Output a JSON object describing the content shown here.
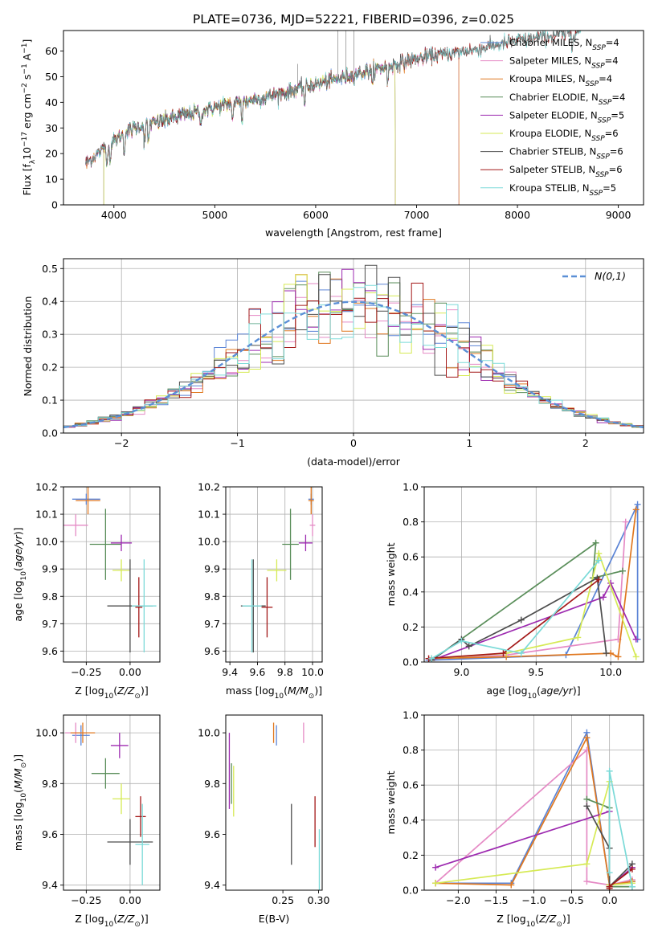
{
  "figure": {
    "title": "PLATE=0736, MJD=52221, FIBERID=0396, z=0.025"
  },
  "palette": {
    "Chabrier MILES": "#5b84d6",
    "Salpeter MILES": "#e58ac5",
    "Kroupa MILES": "#e07820",
    "Chabrier ELODIE": "#5a8e5a",
    "Salpeter ELODIE": "#9d2ab0",
    "Kroupa ELODIE": "#d6ea55",
    "Chabrier STELIB": "#4d4d4d",
    "Salpeter STELIB": "#a31818",
    "Kroupa STELIB": "#7bdad8",
    "grid": "#b0b0b0",
    "gaussian": "#5b8fd6"
  },
  "chart_data": [
    {
      "id": "spectrum",
      "type": "line",
      "xlabel": "wavelength [Angstrom, rest frame]",
      "ylabel": "Flux [f_λ10^-17 erg cm^-2 s^-1 A^-1]",
      "xlim": [
        3500,
        9250
      ],
      "ylim": [
        0,
        68
      ],
      "xticks": [
        4000,
        5000,
        6000,
        7000,
        8000,
        9000
      ],
      "yticks": [
        0,
        10,
        20,
        30,
        40,
        50,
        60
      ],
      "grid": false,
      "legend_position": "upper-right",
      "legend": [
        {
          "name": "Chabrier MILES",
          "nssp": "4"
        },
        {
          "name": "Salpeter MILES",
          "nssp": "4"
        },
        {
          "name": "Kroupa MILES",
          "nssp": "4"
        },
        {
          "name": "Chabrier ELODIE",
          "nssp": "4"
        },
        {
          "name": "Salpeter ELODIE",
          "nssp": "5"
        },
        {
          "name": "Kroupa ELODIE",
          "nssp": "6"
        },
        {
          "name": "Chabrier STELIB",
          "nssp": "6"
        },
        {
          "name": "Salpeter STELIB",
          "nssp": "6"
        },
        {
          "name": "Kroupa STELIB",
          "nssp": "5"
        }
      ],
      "continuum": [
        [
          3720,
          16
        ],
        [
          3900,
          22
        ],
        [
          4000,
          25
        ],
        [
          4200,
          30
        ],
        [
          4500,
          33
        ],
        [
          5000,
          38
        ],
        [
          5500,
          42
        ],
        [
          6000,
          47
        ],
        [
          6500,
          52
        ],
        [
          7000,
          57
        ],
        [
          7500,
          60
        ],
        [
          8000,
          64
        ],
        [
          8500,
          67
        ],
        [
          8630,
          68
        ]
      ],
      "data_range": [
        3720,
        8630
      ],
      "model_ranges": [
        {
          "name": "Chabrier MILES",
          "range": [
            3720,
            7420
          ]
        },
        {
          "name": "Salpeter MILES",
          "range": [
            3720,
            7420
          ]
        },
        {
          "name": "Kroupa MILES",
          "range": [
            3720,
            7420
          ]
        },
        {
          "name": "Chabrier ELODIE",
          "range": [
            3900,
            6790
          ]
        },
        {
          "name": "Salpeter ELODIE",
          "range": [
            3900,
            6790
          ]
        },
        {
          "name": "Kroupa ELODIE",
          "range": [
            3900,
            6790
          ]
        },
        {
          "name": "Chabrier STELIB",
          "range": [
            3720,
            8630
          ]
        },
        {
          "name": "Salpeter STELIB",
          "range": [
            3720,
            8630
          ]
        },
        {
          "name": "Kroupa STELIB",
          "range": [
            3720,
            8630
          ]
        }
      ]
    },
    {
      "id": "residuals",
      "type": "histogram",
      "xlabel": "(data-model)/error",
      "ylabel": "Normed distribution",
      "xlim": [
        -2.5,
        2.5
      ],
      "ylim": [
        0,
        0.53
      ],
      "xticks": [
        -2,
        -1,
        0,
        1,
        2
      ],
      "yticks": [
        0.0,
        0.1,
        0.2,
        0.3,
        0.4,
        0.5
      ],
      "grid": true,
      "legend_position": "upper-right",
      "gaussian_label": "N(0,1)",
      "gaussian": {
        "mean": 0,
        "sigma": 1
      },
      "bin_width": 0.1,
      "bin_range": [
        -2.5,
        2.5
      ]
    },
    {
      "id": "age_vs_Z",
      "type": "errorbar",
      "xlabel": "Z [log10(Z/Zsun)]",
      "ylabel": "age [log10(age/yr)]",
      "xlim": [
        -0.38,
        0.17
      ],
      "ylim": [
        9.56,
        10.2
      ],
      "xticks": [
        -0.25,
        0.0
      ],
      "yticks": [
        9.6,
        9.7,
        9.8,
        9.9,
        10.0,
        10.1,
        10.2
      ],
      "grid": true,
      "points": [
        {
          "name": "Chabrier MILES",
          "x": -0.25,
          "xerr": 0.08,
          "y": 10.155,
          "yerr": 0.02
        },
        {
          "name": "Salpeter MILES",
          "x": -0.31,
          "xerr": 0.07,
          "y": 10.06,
          "yerr": 0.04
        },
        {
          "name": "Kroupa MILES",
          "x": -0.24,
          "xerr": 0.07,
          "y": 10.15,
          "yerr": 0.05
        },
        {
          "name": "Chabrier ELODIE",
          "x": -0.14,
          "xerr": 0.09,
          "y": 9.99,
          "yerr": 0.13
        },
        {
          "name": "Salpeter ELODIE",
          "x": -0.05,
          "xerr": 0.06,
          "y": 9.995,
          "yerr": 0.03
        },
        {
          "name": "Kroupa ELODIE",
          "x": -0.05,
          "xerr": 0.05,
          "y": 9.895,
          "yerr": 0.04
        },
        {
          "name": "Chabrier STELIB",
          "x": 0.0,
          "xerr": 0.13,
          "y": 9.765,
          "yerr": 0.17
        },
        {
          "name": "Salpeter STELIB",
          "x": 0.05,
          "xerr": 0.02,
          "y": 9.76,
          "yerr": 0.11
        },
        {
          "name": "Kroupa STELIB",
          "x": 0.08,
          "xerr": 0.07,
          "y": 9.765,
          "yerr": 0.17
        }
      ]
    },
    {
      "id": "age_vs_mass",
      "type": "errorbar",
      "xlabel": "mass [log10(M/Msun)]",
      "ylabel": "",
      "xlim": [
        9.37,
        10.07
      ],
      "ylim": [
        9.56,
        10.2
      ],
      "xticks": [
        9.4,
        9.6,
        9.8,
        10.0
      ],
      "yticks": [
        9.6,
        9.7,
        9.8,
        9.9,
        10.0,
        10.1,
        10.2
      ],
      "grid": true,
      "points": [
        {
          "name": "Chabrier MILES",
          "x": 9.99,
          "xerr": 0.02,
          "y": 10.155,
          "yerr": 0.02
        },
        {
          "name": "Salpeter MILES",
          "x": 10.0,
          "xerr": 0.02,
          "y": 10.06,
          "yerr": 0.04
        },
        {
          "name": "Kroupa MILES",
          "x": 9.99,
          "xerr": 0.02,
          "y": 10.15,
          "yerr": 0.05
        },
        {
          "name": "Chabrier ELODIE",
          "x": 9.84,
          "xerr": 0.06,
          "y": 9.99,
          "yerr": 0.13
        },
        {
          "name": "Salpeter ELODIE",
          "x": 9.95,
          "xerr": 0.05,
          "y": 9.995,
          "yerr": 0.03
        },
        {
          "name": "Kroupa ELODIE",
          "x": 9.74,
          "xerr": 0.07,
          "y": 9.895,
          "yerr": 0.04
        },
        {
          "name": "Chabrier STELIB",
          "x": 9.57,
          "xerr": 0.09,
          "y": 9.765,
          "yerr": 0.17
        },
        {
          "name": "Salpeter STELIB",
          "x": 9.67,
          "xerr": 0.04,
          "y": 9.76,
          "yerr": 0.11
        },
        {
          "name": "Kroupa STELIB",
          "x": 9.56,
          "xerr": 0.07,
          "y": 9.765,
          "yerr": 0.17
        }
      ]
    },
    {
      "id": "weights_vs_age",
      "type": "line",
      "xlabel": "age [log10(age/yr)]",
      "ylabel": "mass weight",
      "xlim": [
        8.75,
        10.22
      ],
      "ylim": [
        0,
        1.0
      ],
      "xticks": [
        9.0,
        9.5,
        10.0
      ],
      "yticks": [
        0.0,
        0.2,
        0.4,
        0.6,
        0.8,
        1.0
      ],
      "grid": true,
      "series": [
        {
          "name": "Chabrier MILES",
          "x": [
            8.78,
            9.7,
            10.18,
            10.18
          ],
          "y": [
            0.01,
            0.04,
            0.9,
            0.13
          ]
        },
        {
          "name": "Salpeter MILES",
          "x": [
            8.8,
            9.3,
            10.05,
            10.1
          ],
          "y": [
            0.02,
            0.04,
            0.13,
            0.8
          ]
        },
        {
          "name": "Kroupa MILES",
          "x": [
            8.8,
            9.3,
            10.0,
            10.05,
            10.17
          ],
          "y": [
            0.02,
            0.03,
            0.05,
            0.03,
            0.87
          ]
        },
        {
          "name": "Chabrier ELODIE",
          "x": [
            8.8,
            9.9,
            9.88,
            10.08
          ],
          "y": [
            0.01,
            0.68,
            0.48,
            0.52
          ]
        },
        {
          "name": "Salpeter ELODIE",
          "x": [
            8.8,
            9.95,
            10.0,
            10.17
          ],
          "y": [
            0.01,
            0.37,
            0.45,
            0.13
          ]
        },
        {
          "name": "Kroupa ELODIE",
          "x": [
            8.8,
            9.3,
            9.78,
            9.92,
            10.17
          ],
          "y": [
            0.02,
            0.05,
            0.14,
            0.62,
            0.03
          ]
        },
        {
          "name": "Chabrier STELIB",
          "x": [
            8.8,
            9.0,
            9.05,
            9.4,
            9.91,
            9.97
          ],
          "y": [
            0.01,
            0.13,
            0.09,
            0.24,
            0.48,
            0.05
          ]
        },
        {
          "name": "Salpeter STELIB",
          "x": [
            8.78,
            9.28,
            9.92
          ],
          "y": [
            0.02,
            0.05,
            0.47
          ]
        },
        {
          "name": "Kroupa STELIB",
          "x": [
            8.8,
            9.0,
            9.4,
            9.92
          ],
          "y": [
            0.02,
            0.12,
            0.05,
            0.58
          ]
        }
      ]
    },
    {
      "id": "mass_vs_Z",
      "type": "errorbar",
      "xlabel": "Z [log10(Z/Zsun)]",
      "ylabel": "mass [log10(M/Msun)]",
      "xlim": [
        -0.38,
        0.17
      ],
      "ylim": [
        9.38,
        10.07
      ],
      "xticks": [
        -0.25,
        0.0
      ],
      "yticks": [
        9.4,
        9.6,
        9.8,
        10.0
      ],
      "grid": true,
      "points": [
        {
          "name": "Chabrier MILES",
          "x": -0.28,
          "xerr": 0.05,
          "y": 9.99,
          "yerr": 0.04
        },
        {
          "name": "Salpeter MILES",
          "x": -0.31,
          "xerr": 0.06,
          "y": 10.0,
          "yerr": 0.04
        },
        {
          "name": "Kroupa MILES",
          "x": -0.27,
          "xerr": 0.07,
          "y": 10.0,
          "yerr": 0.04
        },
        {
          "name": "Chabrier ELODIE",
          "x": -0.14,
          "xerr": 0.08,
          "y": 9.84,
          "yerr": 0.06
        },
        {
          "name": "Salpeter ELODIE",
          "x": -0.06,
          "xerr": 0.05,
          "y": 9.95,
          "yerr": 0.05
        },
        {
          "name": "Kroupa ELODIE",
          "x": -0.05,
          "xerr": 0.05,
          "y": 9.74,
          "yerr": 0.06
        },
        {
          "name": "Chabrier STELIB",
          "x": 0.0,
          "xerr": 0.13,
          "y": 9.57,
          "yerr": 0.09
        },
        {
          "name": "Salpeter STELIB",
          "x": 0.06,
          "xerr": 0.03,
          "y": 9.67,
          "yerr": 0.08
        },
        {
          "name": "Kroupa STELIB",
          "x": 0.07,
          "xerr": 0.04,
          "y": 9.56,
          "yerr": 0.16
        }
      ]
    },
    {
      "id": "mass_vs_ebv",
      "type": "errorbar",
      "xlabel": "E(B-V)",
      "ylabel": "",
      "xlim": [
        0.17,
        0.305
      ],
      "ylim": [
        9.38,
        10.07
      ],
      "xticks": [
        0.25,
        0.3
      ],
      "xticklabels": [
        "0.25",
        "0.30"
      ],
      "yticks": [
        9.4,
        9.6,
        9.8,
        10.0
      ],
      "grid": false,
      "points": [
        {
          "name": "Chabrier MILES",
          "x": 0.241,
          "xerr": 0,
          "y": 9.99,
          "yerr": 0.04
        },
        {
          "name": "Salpeter MILES",
          "x": 0.279,
          "xerr": 0,
          "y": 10.0,
          "yerr": 0.04
        },
        {
          "name": "Kroupa MILES",
          "x": 0.237,
          "xerr": 0,
          "y": 10.0,
          "yerr": 0.04
        },
        {
          "name": "Chabrier ELODIE",
          "x": 0.178,
          "xerr": 0,
          "y": 9.8,
          "yerr": 0.08
        },
        {
          "name": "Salpeter ELODIE",
          "x": 0.175,
          "xerr": 0,
          "y": 9.85,
          "yerr": 0.15
        },
        {
          "name": "Kroupa ELODIE",
          "x": 0.181,
          "xerr": 0,
          "y": 9.77,
          "yerr": 0.1
        },
        {
          "name": "Chabrier STELIB",
          "x": 0.262,
          "xerr": 0,
          "y": 9.6,
          "yerr": 0.12
        },
        {
          "name": "Salpeter STELIB",
          "x": 0.295,
          "xerr": 0,
          "y": 9.65,
          "yerr": 0.1
        },
        {
          "name": "Kroupa STELIB",
          "x": 0.301,
          "xerr": 0,
          "y": 9.5,
          "yerr": 0.12
        }
      ]
    },
    {
      "id": "weights_vs_Z",
      "type": "line",
      "xlabel": "Z [log10(Z/Zsun)]",
      "ylabel": "mass weight",
      "xlim": [
        -2.45,
        0.45
      ],
      "ylim": [
        0,
        1.0
      ],
      "xticks": [
        -2.0,
        -1.5,
        -1.0,
        -0.5,
        0.0
      ],
      "yticks": [
        0.0,
        0.2,
        0.4,
        0.6,
        0.8,
        1.0
      ],
      "grid": true,
      "series": [
        {
          "name": "Chabrier MILES",
          "x": [
            -2.3,
            -1.3,
            -0.3,
            0.0,
            0.3
          ],
          "y": [
            0.04,
            0.04,
            0.9,
            0.03,
            0.05
          ]
        },
        {
          "name": "Salpeter MILES",
          "x": [
            -2.3,
            -0.3,
            -0.3,
            0.0,
            0.3
          ],
          "y": [
            0.04,
            0.8,
            0.05,
            0.03,
            0.06
          ]
        },
        {
          "name": "Kroupa MILES",
          "x": [
            -2.3,
            -1.3,
            -0.3,
            0.0,
            0.3
          ],
          "y": [
            0.04,
            0.03,
            0.87,
            0.03,
            0.05
          ]
        },
        {
          "name": "Chabrier ELODIE",
          "x": [
            -0.3,
            0.0,
            0.0,
            0.3
          ],
          "y": [
            0.52,
            0.47,
            0.02,
            0.02
          ]
        },
        {
          "name": "Salpeter ELODIE",
          "x": [
            -2.3,
            0.0,
            0.0,
            0.3
          ],
          "y": [
            0.13,
            0.45,
            0.02,
            0.13
          ]
        },
        {
          "name": "Kroupa ELODIE",
          "x": [
            -2.3,
            -0.3,
            0.0,
            0.0,
            0.3
          ],
          "y": [
            0.04,
            0.15,
            0.62,
            0.03,
            0.04
          ]
        },
        {
          "name": "Chabrier STELIB",
          "x": [
            -0.3,
            0.0,
            0.0,
            0.3
          ],
          "y": [
            0.48,
            0.24,
            0.02,
            0.15
          ]
        },
        {
          "name": "Salpeter STELIB",
          "x": [
            0.0,
            0.0,
            0.3
          ],
          "y": [
            0.01,
            0.02,
            0.12
          ]
        },
        {
          "name": "Kroupa STELIB",
          "x": [
            0.0,
            0.0,
            0.3
          ],
          "y": [
            0.1,
            0.68,
            0.02
          ]
        }
      ]
    }
  ]
}
